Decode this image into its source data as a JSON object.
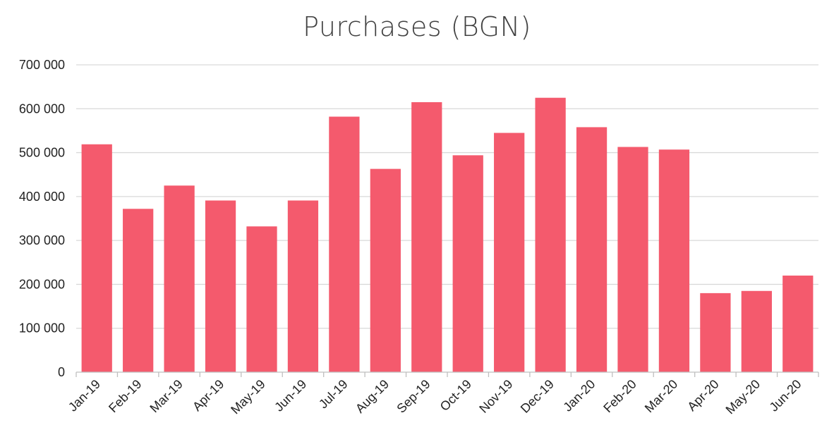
{
  "chart_data": {
    "type": "bar",
    "title": "Purchases (BGN)",
    "xlabel": "",
    "ylabel": "",
    "categories": [
      "Jan-19",
      "Feb-19",
      "Mar-19",
      "Apr-19",
      "May-19",
      "Jun-19",
      "Jul-19",
      "Aug-19",
      "Sep-19",
      "Oct-19",
      "Nov-19",
      "Dec-19",
      "Jan-20",
      "Feb-20",
      "Mar-20",
      "Apr-20",
      "May-20",
      "Jun-20"
    ],
    "values": [
      519000,
      372000,
      425000,
      391000,
      332000,
      391000,
      582000,
      463000,
      615000,
      494000,
      545000,
      625000,
      558000,
      513000,
      507000,
      180000,
      185000,
      220000
    ],
    "ylim": [
      0,
      700000
    ],
    "yticks": [
      0,
      100000,
      200000,
      300000,
      400000,
      500000,
      600000,
      700000
    ],
    "ytick_labels": [
      "0",
      "100 000",
      "200 000",
      "300 000",
      "400 000",
      "500 000",
      "600 000",
      "700 000"
    ],
    "grid": true,
    "legend": "none",
    "colors": {
      "bar": "#f45a6d",
      "grid": "#d9d9d9",
      "axis": "#bfbfbf",
      "text": "#222222",
      "title": "#404040"
    }
  }
}
